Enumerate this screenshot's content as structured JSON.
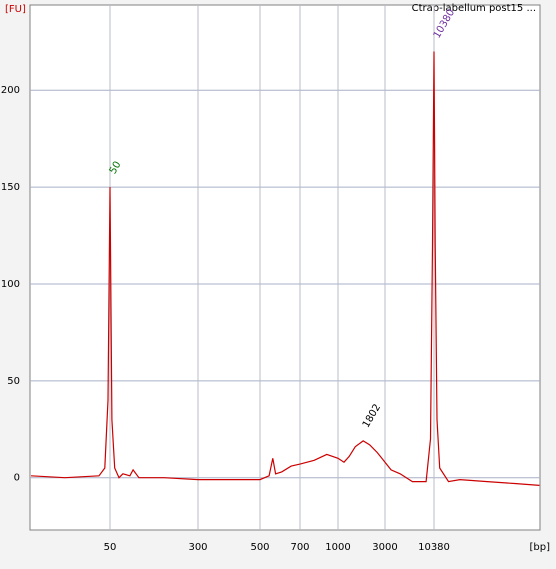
{
  "chart_data": {
    "type": "line",
    "title": "Ctrap-labellum post15 ...",
    "y_label": "[FU]",
    "x_label": "[bp]",
    "x": [
      10,
      20,
      40,
      45,
      48,
      50,
      52,
      55,
      60,
      65,
      75,
      80,
      90,
      150,
      300,
      500,
      540,
      557,
      570,
      600,
      650,
      700,
      800,
      900,
      1000,
      1150,
      1300,
      1500,
      1802,
      2100,
      2500,
      3000,
      3500,
      4400,
      6000,
      8500,
      9500,
      10000,
      10380,
      10700,
      11200,
      12000,
      15000,
      20000,
      40000,
      80000,
      150000
    ],
    "series": [
      {
        "name": "Ctrap-labellum post15",
        "color": "#cc0000",
        "values": [
          1,
          0,
          1,
          5,
          40,
          150,
          30,
          5,
          0,
          2,
          1,
          4,
          0,
          0,
          -1,
          -1,
          1,
          10,
          2,
          3,
          6,
          7,
          9,
          12,
          10,
          8,
          11,
          16,
          19,
          17,
          13,
          8,
          4,
          2,
          -2,
          -2,
          20,
          120,
          220,
          120,
          30,
          5,
          -2,
          -1,
          -2,
          -3,
          -4
        ]
      }
    ],
    "peak_labels": [
      {
        "label": "50",
        "x": 50,
        "value": 150,
        "color": "#007000"
      },
      {
        "label": "1802",
        "x": 1802,
        "value": 19,
        "color": "#000000"
      },
      {
        "label": "10380",
        "x": 10380,
        "value": 220,
        "color": "#7030a0"
      }
    ],
    "xticks": [
      50,
      300,
      500,
      700,
      1000,
      3000,
      10380
    ],
    "ylim": [
      -27,
      244
    ],
    "yticks": [
      0,
      50,
      100,
      150,
      200
    ],
    "grid": true
  }
}
